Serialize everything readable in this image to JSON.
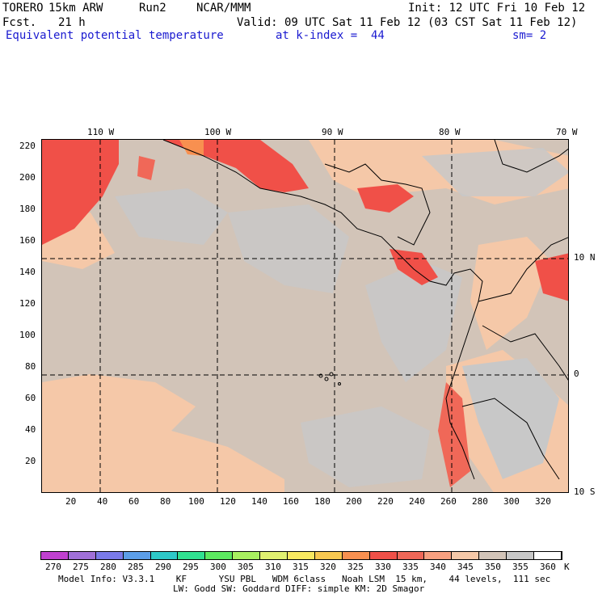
{
  "header": {
    "model": "TORERO",
    "resolution": "15km ARW",
    "run": "Run2",
    "org": "NCAR/MMM",
    "init": "Init: 12 UTC Fri 10 Feb 12",
    "fcst_label": "Fcst.",
    "fcst_value": "21 h",
    "valid": "Valid: 09 UTC Sat 11 Feb 12 (03 CST Sat 11 Feb 12)",
    "field": "Equivalent potential temperature",
    "level": "at k-index =  44",
    "smoothing": "sm= 2"
  },
  "top_lon_labels": [
    "110 W",
    "100 W",
    "90 W",
    "80 W",
    "70 W"
  ],
  "right_lat_labels": [
    "10 N",
    "0",
    "10 S"
  ],
  "y_axis_ticks": [
    "220",
    "200",
    "180",
    "160",
    "140",
    "120",
    "100",
    "80",
    "60",
    "40",
    "20"
  ],
  "x_axis_ticks": [
    "20",
    "40",
    "60",
    "80",
    "100",
    "120",
    "140",
    "160",
    "180",
    "200",
    "220",
    "240",
    "260",
    "280",
    "300",
    "320"
  ],
  "colorbar": {
    "labels": [
      "270",
      "275",
      "280",
      "285",
      "290",
      "295",
      "300",
      "305",
      "310",
      "315",
      "320",
      "325",
      "330",
      "335",
      "340",
      "345",
      "350",
      "355",
      "360"
    ],
    "unit": "K",
    "colors": [
      "#c040d0",
      "#a070d8",
      "#7a7ae8",
      "#5c9ee8",
      "#2ec8c8",
      "#30e090",
      "#5ce860",
      "#a8f060",
      "#e0f070",
      "#f8e860",
      "#f8c850",
      "#f89050",
      "#f05048",
      "#f06858",
      "#f8a080",
      "#f5c8a8",
      "#d2c4b8",
      "#c8c8c8",
      "#ffffff"
    ]
  },
  "footer": {
    "line1": "Model Info: V3.3.1    KF      YSU PBL   WDM 6class   Noah LSM  15 km,    44 levels,  111 sec",
    "line2": "LW: Godd SW: Goddard DIFF: simple KM: 2D Smagor"
  }
}
